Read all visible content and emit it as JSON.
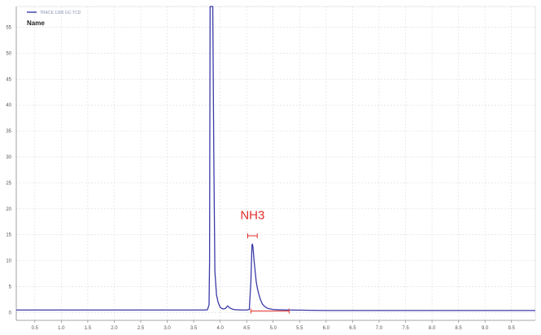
{
  "legend": {
    "series_label": "TRACE 1300 GC-TCD",
    "name_label": "Name",
    "line_color": "#3a3aa8"
  },
  "chart_data": {
    "type": "line",
    "title": "",
    "xlabel": "",
    "ylabel": "",
    "xlim": [
      0.15,
      9.95
    ],
    "ylim": [
      -1.5,
      59
    ],
    "grid": true,
    "x_ticks": [
      "0.5",
      "1.0",
      "1.5",
      "2.0",
      "2.5",
      "3.0",
      "3.5",
      "4.0",
      "4.5",
      "5.0",
      "5.5",
      "6.0",
      "6.5",
      "7.0",
      "7.5",
      "8.0",
      "8.5",
      "9.0",
      "9.5"
    ],
    "y_ticks": [
      "0",
      "5",
      "10",
      "15",
      "20",
      "25",
      "30",
      "35",
      "40",
      "45",
      "50",
      "55"
    ],
    "series": [
      {
        "color": "#3a3aa8",
        "x": [
          0.15,
          3.7,
          3.76,
          3.79,
          3.8,
          3.81,
          3.82,
          3.84,
          3.86,
          3.88,
          3.9,
          3.93,
          3.96,
          4.0,
          4.05,
          4.1,
          4.14,
          4.17,
          4.2,
          4.25,
          4.3,
          4.4,
          4.5,
          4.55,
          4.58,
          4.6,
          4.61,
          4.62,
          4.64,
          4.66,
          4.68,
          4.7,
          4.73,
          4.76,
          4.8,
          4.85,
          4.9,
          4.95,
          5.0,
          5.1,
          5.3,
          6.0,
          9.95
        ],
        "y": [
          0.5,
          0.5,
          0.55,
          1.5,
          10,
          59,
          59,
          59,
          59,
          30,
          8,
          3.5,
          2.0,
          1.0,
          0.7,
          0.8,
          1.3,
          1.0,
          0.8,
          0.6,
          0.55,
          0.5,
          0.5,
          0.6,
          6,
          13,
          13.2,
          12.5,
          10,
          8,
          6,
          4.8,
          3.5,
          2.5,
          1.6,
          1.1,
          0.8,
          0.7,
          0.6,
          0.55,
          0.5,
          0.4,
          0.4
        ]
      }
    ],
    "annotations": [
      {
        "text": "NH3",
        "color": "#e0302a",
        "peak_x": 4.61,
        "peak_y": 13.2,
        "width_bar": [
          4.52,
          4.7
        ],
        "baseline": [
          4.58,
          5.3
        ]
      }
    ]
  }
}
